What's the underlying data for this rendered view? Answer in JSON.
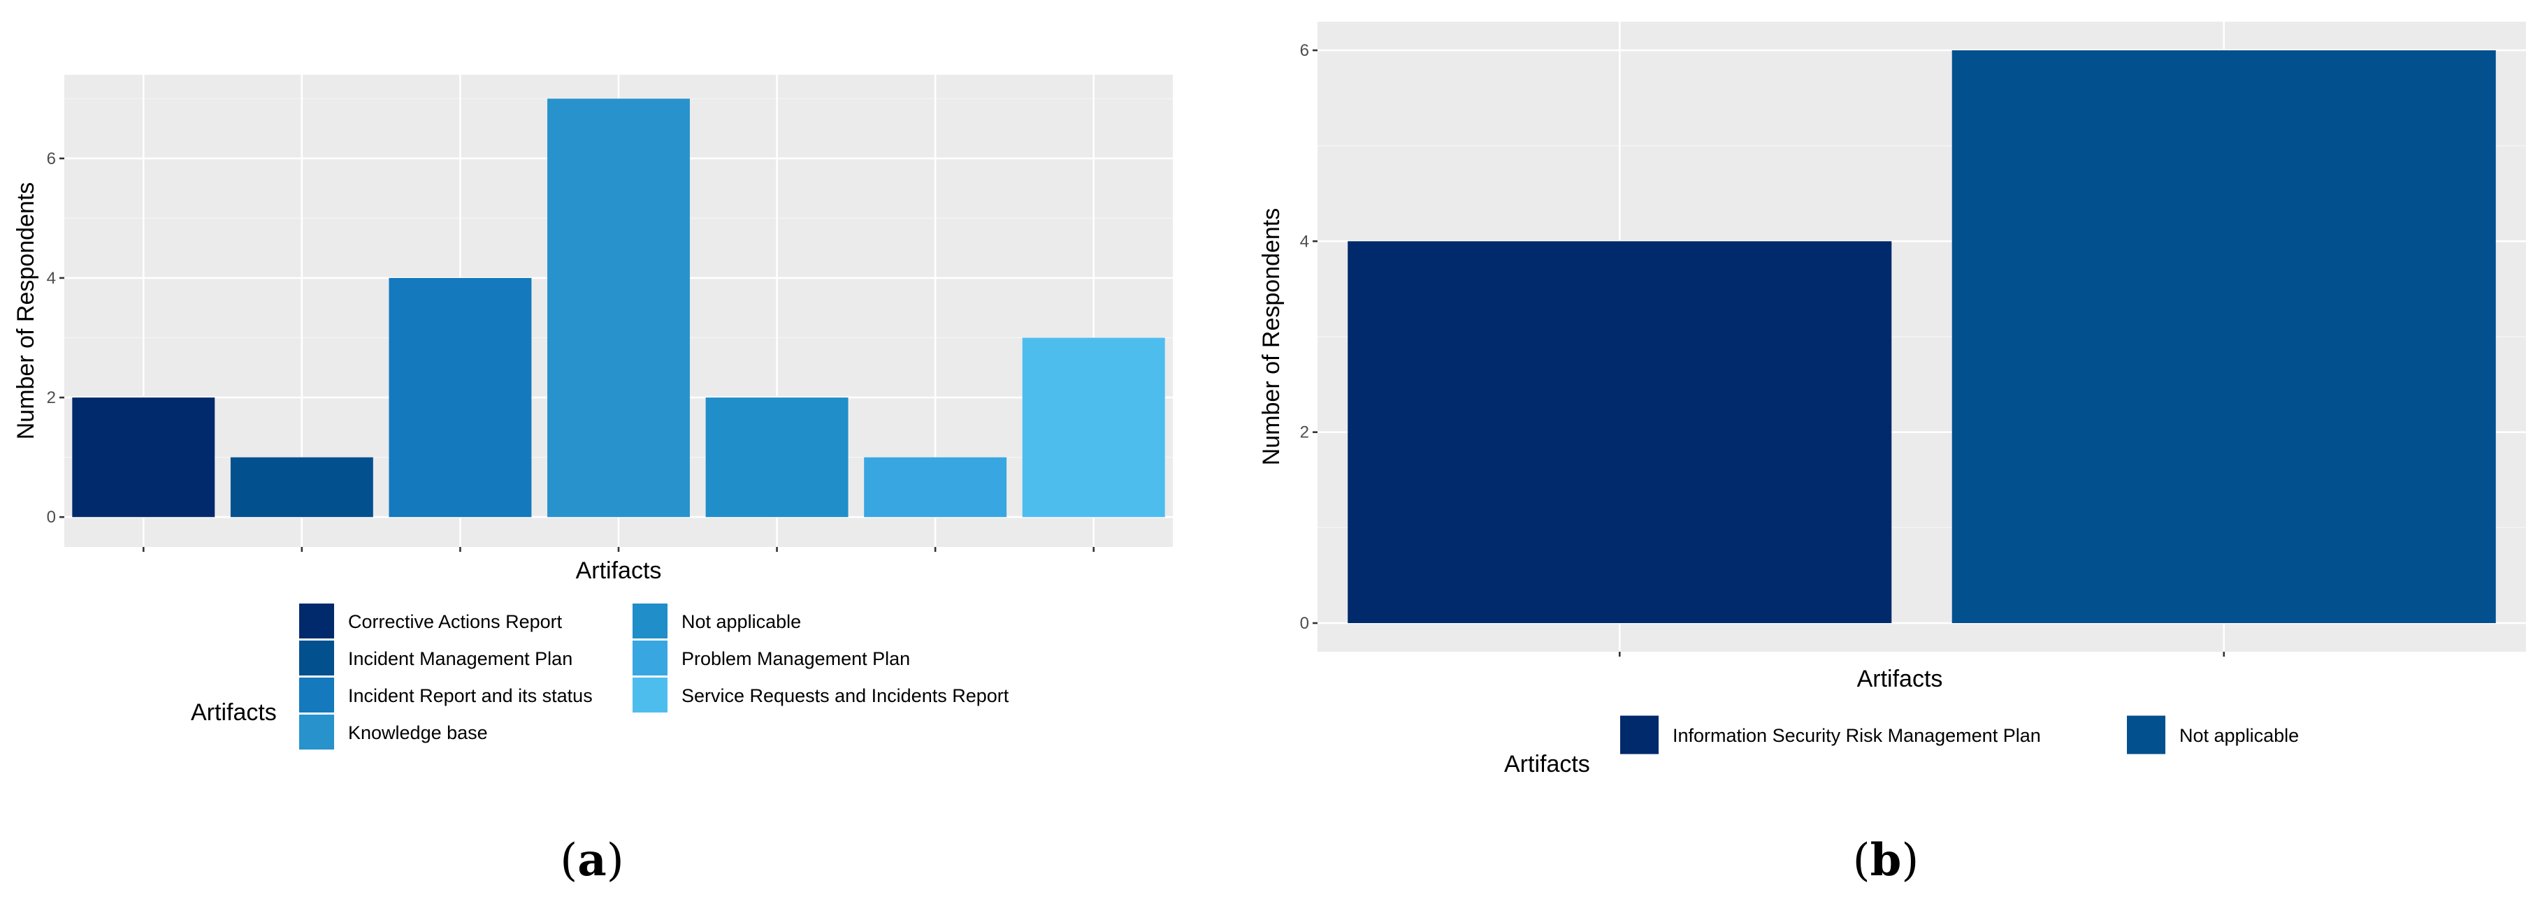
{
  "chart_data": [
    {
      "type": "bar",
      "panel": "a",
      "caption_letter": "a",
      "xlabel": "Artifacts",
      "ylabel": "Number of Respondents",
      "ylim": [
        -0.5,
        7.4
      ],
      "yticks": [
        0,
        2,
        4,
        6
      ],
      "grid": true,
      "legend_title": "Artifacts",
      "legend_position": "bottom",
      "categories": [
        "Corrective Actions Report",
        "Incident Management Plan",
        "Incident Report and its status",
        "Knowledge base",
        "Not applicable",
        "Problem Management Plan",
        "Service Requests and Incidents Report"
      ],
      "values": [
        2,
        1,
        4,
        7,
        2,
        1,
        3
      ],
      "colors": [
        "#012a6c",
        "#03508f",
        "#1479bd",
        "#2892cd",
        "#1f8ec9",
        "#38a6e1",
        "#4dbdee"
      ]
    },
    {
      "type": "bar",
      "panel": "b",
      "caption_letter": "b",
      "xlabel": "Artifacts",
      "ylabel": "Number of Respondents",
      "ylim": [
        -0.3,
        6.3
      ],
      "yticks": [
        0,
        2,
        4,
        6
      ],
      "grid": true,
      "legend_title": "Artifacts",
      "legend_position": "bottom",
      "categories": [
        "Information Security Risk Management Plan",
        "Not applicable"
      ],
      "values": [
        4,
        6
      ],
      "colors": [
        "#012a6c",
        "#03508f"
      ]
    }
  ]
}
